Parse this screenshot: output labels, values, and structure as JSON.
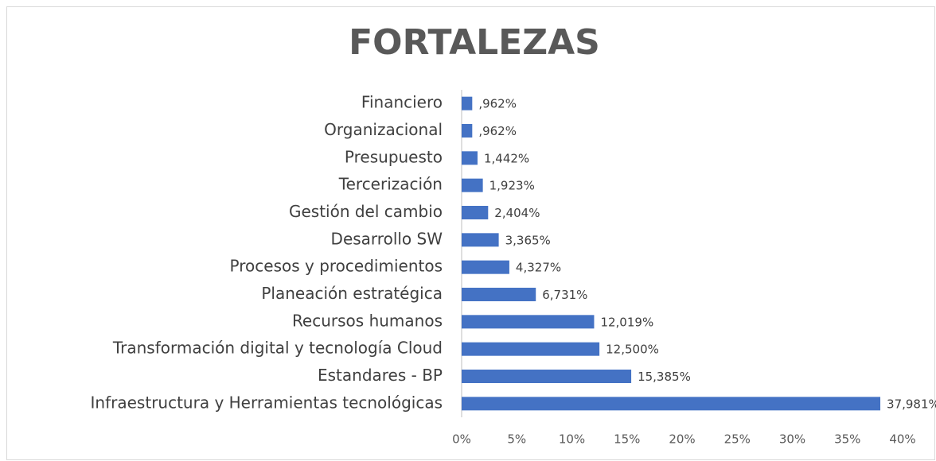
{
  "chart_data": {
    "type": "bar",
    "orientation": "horizontal",
    "title": "FORTALEZAS",
    "categories": [
      "Financiero",
      "Organizacional",
      "Presupuesto",
      "Tercerización",
      "Gestión del cambio",
      "Desarrollo SW",
      "Procesos y procedimientos",
      "Planeación estratégica",
      "Recursos humanos",
      "Transformación digital y tecnología Cloud",
      "Estandares - BP",
      "Infraestructura y Herramientas tecnológicas"
    ],
    "values": [
      0.962,
      0.962,
      1.442,
      1.923,
      2.404,
      3.365,
      4.327,
      6.731,
      12.019,
      12.5,
      15.385,
      37.981
    ],
    "value_labels": [
      ",962%",
      ",962%",
      "1,442%",
      "1,923%",
      "2,404%",
      "3,365%",
      "4,327%",
      "6,731%",
      "12,019%",
      "12,500%",
      "15,385%",
      "37,981%"
    ],
    "color": "#4472c4",
    "xlim": [
      0,
      40
    ],
    "xticks": [
      {
        "value": 0,
        "label": "0%"
      },
      {
        "value": 5,
        "label": "5%"
      },
      {
        "value": 10,
        "label": "10%"
      },
      {
        "value": 15,
        "label": "15%"
      },
      {
        "value": 20,
        "label": "20%"
      },
      {
        "value": 25,
        "label": "25%"
      },
      {
        "value": 30,
        "label": "30%"
      },
      {
        "value": 35,
        "label": "35%"
      },
      {
        "value": 40,
        "label": "40%"
      }
    ],
    "grid": false
  }
}
